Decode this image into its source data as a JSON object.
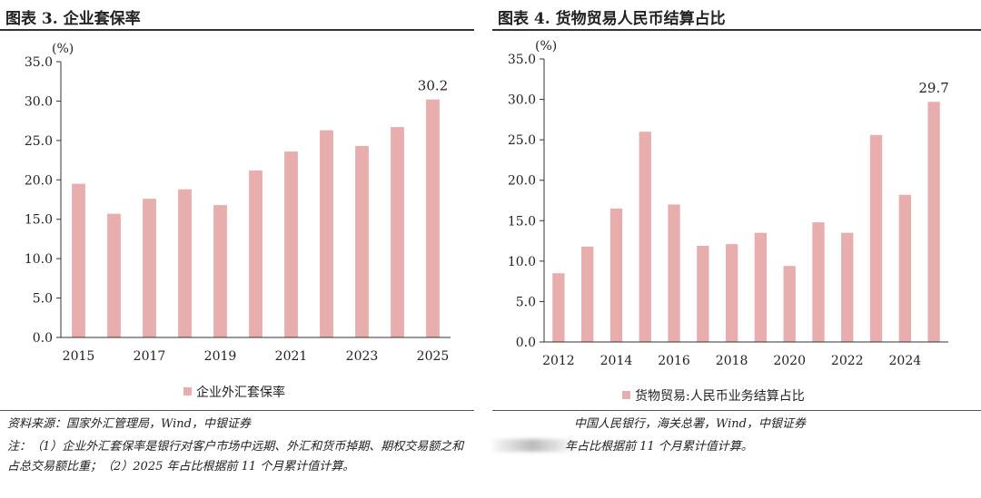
{
  "colors": {
    "bar": "#e8aeae",
    "axis": "#333333"
  },
  "left": {
    "title": "图表 3. 企业套保率",
    "source": "资料来源：国家外汇管理局，Wind，中银证券",
    "note": "注：（1）企业外汇套保率是银行对客户市场中远期、外汇和货币掉期、期权交易额之和占总交易额比重；（2）2025 年占比根据前 11 个月累计值计算。"
  },
  "right": {
    "title": "图表 4. 货物贸易人民币结算占比",
    "source": "中国人民银行，海关总署，Wind，中银证券",
    "note": "年占比根据前 11 个月累计值计算。"
  },
  "chart_data": [
    {
      "type": "bar",
      "ylabel": "(%)",
      "ylim": [
        0,
        35
      ],
      "yticks": [
        "0.0",
        "5.0",
        "10.0",
        "15.0",
        "20.0",
        "25.0",
        "30.0",
        "35.0"
      ],
      "categories": [
        "2015",
        "2016",
        "2017",
        "2018",
        "2019",
        "2020",
        "2021",
        "2022",
        "2023",
        "2024",
        "2025"
      ],
      "xtick_labels": [
        "2015",
        "",
        "2017",
        "",
        "2019",
        "",
        "2021",
        "",
        "2023",
        "",
        "2025"
      ],
      "series": [
        {
          "name": "企业外汇套保率",
          "values": [
            19.5,
            15.7,
            17.6,
            18.8,
            16.8,
            21.2,
            23.6,
            26.3,
            24.3,
            26.7,
            30.2
          ]
        }
      ],
      "data_labels": [
        {
          "index": 10,
          "text": "30.2"
        }
      ],
      "legend": "bottom-center",
      "grid": false
    },
    {
      "type": "bar",
      "ylabel": "(%)",
      "ylim": [
        0,
        35
      ],
      "yticks": [
        "0.0",
        "5.0",
        "10.0",
        "15.0",
        "20.0",
        "25.0",
        "30.0",
        "35.0"
      ],
      "categories": [
        "2012",
        "2013",
        "2014",
        "2015",
        "2016",
        "2017",
        "2018",
        "2019",
        "2020",
        "2021",
        "2022",
        "2023",
        "2024",
        "2025"
      ],
      "xtick_labels": [
        "2012",
        "",
        "2014",
        "",
        "2016",
        "",
        "2018",
        "",
        "2020",
        "",
        "2022",
        "",
        "2024",
        ""
      ],
      "series": [
        {
          "name": "货物贸易:人民币业务结算占比",
          "values": [
            8.5,
            11.8,
            16.5,
            26.0,
            17.0,
            11.9,
            12.1,
            13.5,
            9.4,
            14.8,
            13.5,
            25.6,
            18.2,
            29.7
          ]
        }
      ],
      "data_labels": [
        {
          "index": 13,
          "text": "29.7"
        }
      ],
      "legend": "bottom-center",
      "grid": false
    }
  ]
}
